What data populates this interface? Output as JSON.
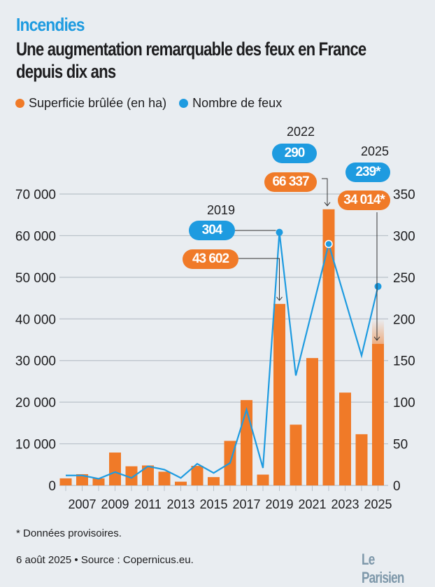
{
  "header": {
    "kicker": "Incendies",
    "title": "Une augmentation remarquable des feux en France depuis dix ans"
  },
  "chart_data": {
    "type": "bar+line",
    "categories": [
      2006,
      2007,
      2008,
      2009,
      2010,
      2011,
      2012,
      2013,
      2014,
      2015,
      2016,
      2017,
      2018,
      2019,
      2020,
      2021,
      2022,
      2023,
      2024,
      2025
    ],
    "x_tick_labels": [
      "2007",
      "2009",
      "2011",
      "2013",
      "2015",
      "2017",
      "2019",
      "2021",
      "2023",
      "2025"
    ],
    "series": [
      {
        "name": "Superficie brûlée (en ha)",
        "type": "bar",
        "axis": "left",
        "color": "#f07a28",
        "values": [
          1700,
          2700,
          1700,
          7900,
          4600,
          4800,
          3300,
          900,
          4700,
          2000,
          10700,
          20500,
          2600,
          43602,
          14600,
          30600,
          66337,
          22300,
          12300,
          34014
        ]
      },
      {
        "name": "Nombre de feux",
        "type": "line",
        "axis": "right",
        "color": "#1e9be0",
        "values": [
          12,
          12,
          8,
          16,
          9,
          23,
          19,
          9,
          26,
          15,
          27,
          91,
          21,
          304,
          132,
          211,
          290,
          223,
          156,
          239
        ]
      }
    ],
    "left_axis": {
      "ylim": [
        0,
        70000
      ],
      "ticks": [
        "0",
        "10 000",
        "20 000",
        "30 000",
        "40 000",
        "50 000",
        "60 000",
        "70 000"
      ]
    },
    "right_axis": {
      "ylim": [
        0,
        350
      ],
      "ticks": [
        "0",
        "50",
        "100",
        "150",
        "200",
        "250",
        "300",
        "350"
      ]
    },
    "grid": true,
    "legend": "top-left",
    "annotations": [
      {
        "year": "2019",
        "fires": "304",
        "area": "43 602"
      },
      {
        "year": "2022",
        "fires": "290",
        "area": "66 337"
      },
      {
        "year": "2025",
        "fires": "239*",
        "area": "34 014*"
      }
    ]
  },
  "footer": {
    "note": "* Données provisoires.",
    "source": "6 août 2025 • Source : Copernicus.eu.",
    "logo": "Le Parisien"
  }
}
